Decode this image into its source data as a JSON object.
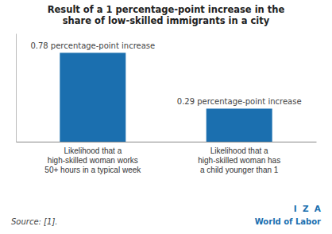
{
  "chart_data": {
    "type": "bar",
    "title": "Result of a 1 percentage-point increase in the\nshare of low-skilled immigrants in a city",
    "categories": [
      "Likelihood that a\nhigh-skilled woman works\n50+ hours in a typical week",
      "Likelihood that a\nhigh-skilled woman has\na child younger than 1"
    ],
    "values": [
      0.78,
      0.29
    ],
    "color": "#1b6faf",
    "data_labels": true,
    "value_labels": [
      "0.78 percentage-point increase",
      "0.29 percentage-point increase"
    ],
    "ylim": [
      0,
      0.95
    ],
    "yticks": [],
    "tick_labels": "x",
    "annotations": [
      "Source: [1].",
      "I  Z  A",
      "World of Labor"
    ]
  }
}
